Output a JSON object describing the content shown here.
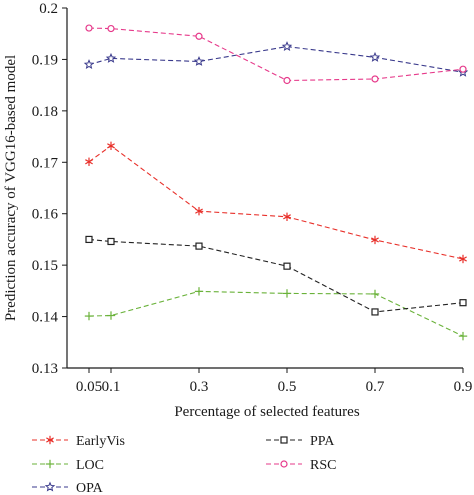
{
  "chart_data": {
    "type": "line",
    "xlabel": "Percentage of selected features",
    "ylabel": "Prediction accuracy of VGG16-based model",
    "x": [
      0.05,
      0.1,
      0.3,
      0.5,
      0.7,
      0.9
    ],
    "xticks": [
      "0.05",
      "0.1",
      "0.3",
      "0.5",
      "0.7",
      "0.9"
    ],
    "yticks": [
      "0.13",
      "0.14",
      "0.15",
      "0.16",
      "0.17",
      "0.18",
      "0.19",
      "0.2"
    ],
    "xlim": [
      0.0,
      0.9
    ],
    "ylim": [
      0.13,
      0.2
    ],
    "grid": false,
    "legend_position": "bottom",
    "series": [
      {
        "name": "EarlyVis",
        "color": "#e8302a",
        "marker": "asterisk",
        "values": [
          0.1701,
          0.1732,
          0.1605,
          0.1594,
          0.1549,
          0.1512
        ]
      },
      {
        "name": "LOC",
        "color": "#6ab23a",
        "marker": "plus",
        "values": [
          0.1401,
          0.1402,
          0.1449,
          0.1445,
          0.1444,
          0.1362
        ]
      },
      {
        "name": "OPA",
        "color": "#3a3a8c",
        "marker": "star",
        "values": [
          0.189,
          0.1902,
          0.1896,
          0.1925,
          0.1904,
          0.1875
        ]
      },
      {
        "name": "PPA",
        "color": "#222222",
        "marker": "square",
        "values": [
          0.155,
          0.1546,
          0.1537,
          0.1498,
          0.1409,
          0.1427
        ]
      },
      {
        "name": "RSC",
        "color": "#e6398a",
        "marker": "circle",
        "values": [
          0.1961,
          0.196,
          0.1945,
          0.1859,
          0.1862,
          0.1881
        ]
      }
    ]
  }
}
